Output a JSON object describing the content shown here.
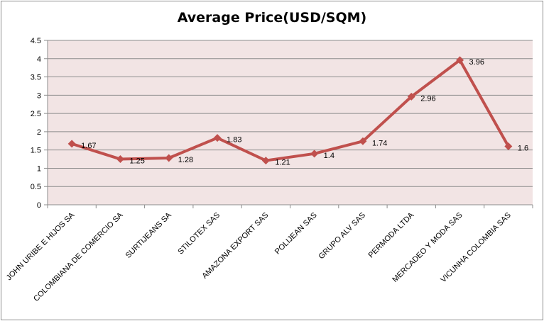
{
  "chart_data": {
    "type": "line",
    "title": "Average Price(USD/SQM)",
    "xlabel": "",
    "ylabel": "",
    "categories": [
      "JOHN URIBE E HIJOS SA",
      "COLOMBIANA DE COMERCIO SA",
      "SURTIJEANS SA",
      "STILOTEX SAS",
      "AMAZONA EXPORT SAS",
      "POLIJEAN SAS",
      "GRUPO ALV SAS",
      "PERMODA LTDA",
      "MERCADEO Y MODA SAS",
      "VICUNHA COLOMBIA SAS"
    ],
    "series": [
      {
        "values": [
          1.67,
          1.25,
          1.28,
          1.83,
          1.21,
          1.4,
          1.74,
          2.96,
          3.96,
          1.6
        ]
      }
    ],
    "data_labels": [
      "1.67",
      "1.25",
      "1.28",
      "1.83",
      "1.21",
      "1.4",
      "1.74",
      "2.96",
      "3.96",
      "1.6"
    ],
    "ylim": [
      0,
      4.5
    ],
    "yticks": [
      "0",
      "0.5",
      "1",
      "1.5",
      "2",
      "2.5",
      "3",
      "3.5",
      "4",
      "4.5"
    ],
    "grid": true,
    "legend": "none",
    "colors": {
      "line": "#c0504d",
      "plot_bg": "#f2e4e4",
      "grid": "#8c8c8c"
    }
  }
}
